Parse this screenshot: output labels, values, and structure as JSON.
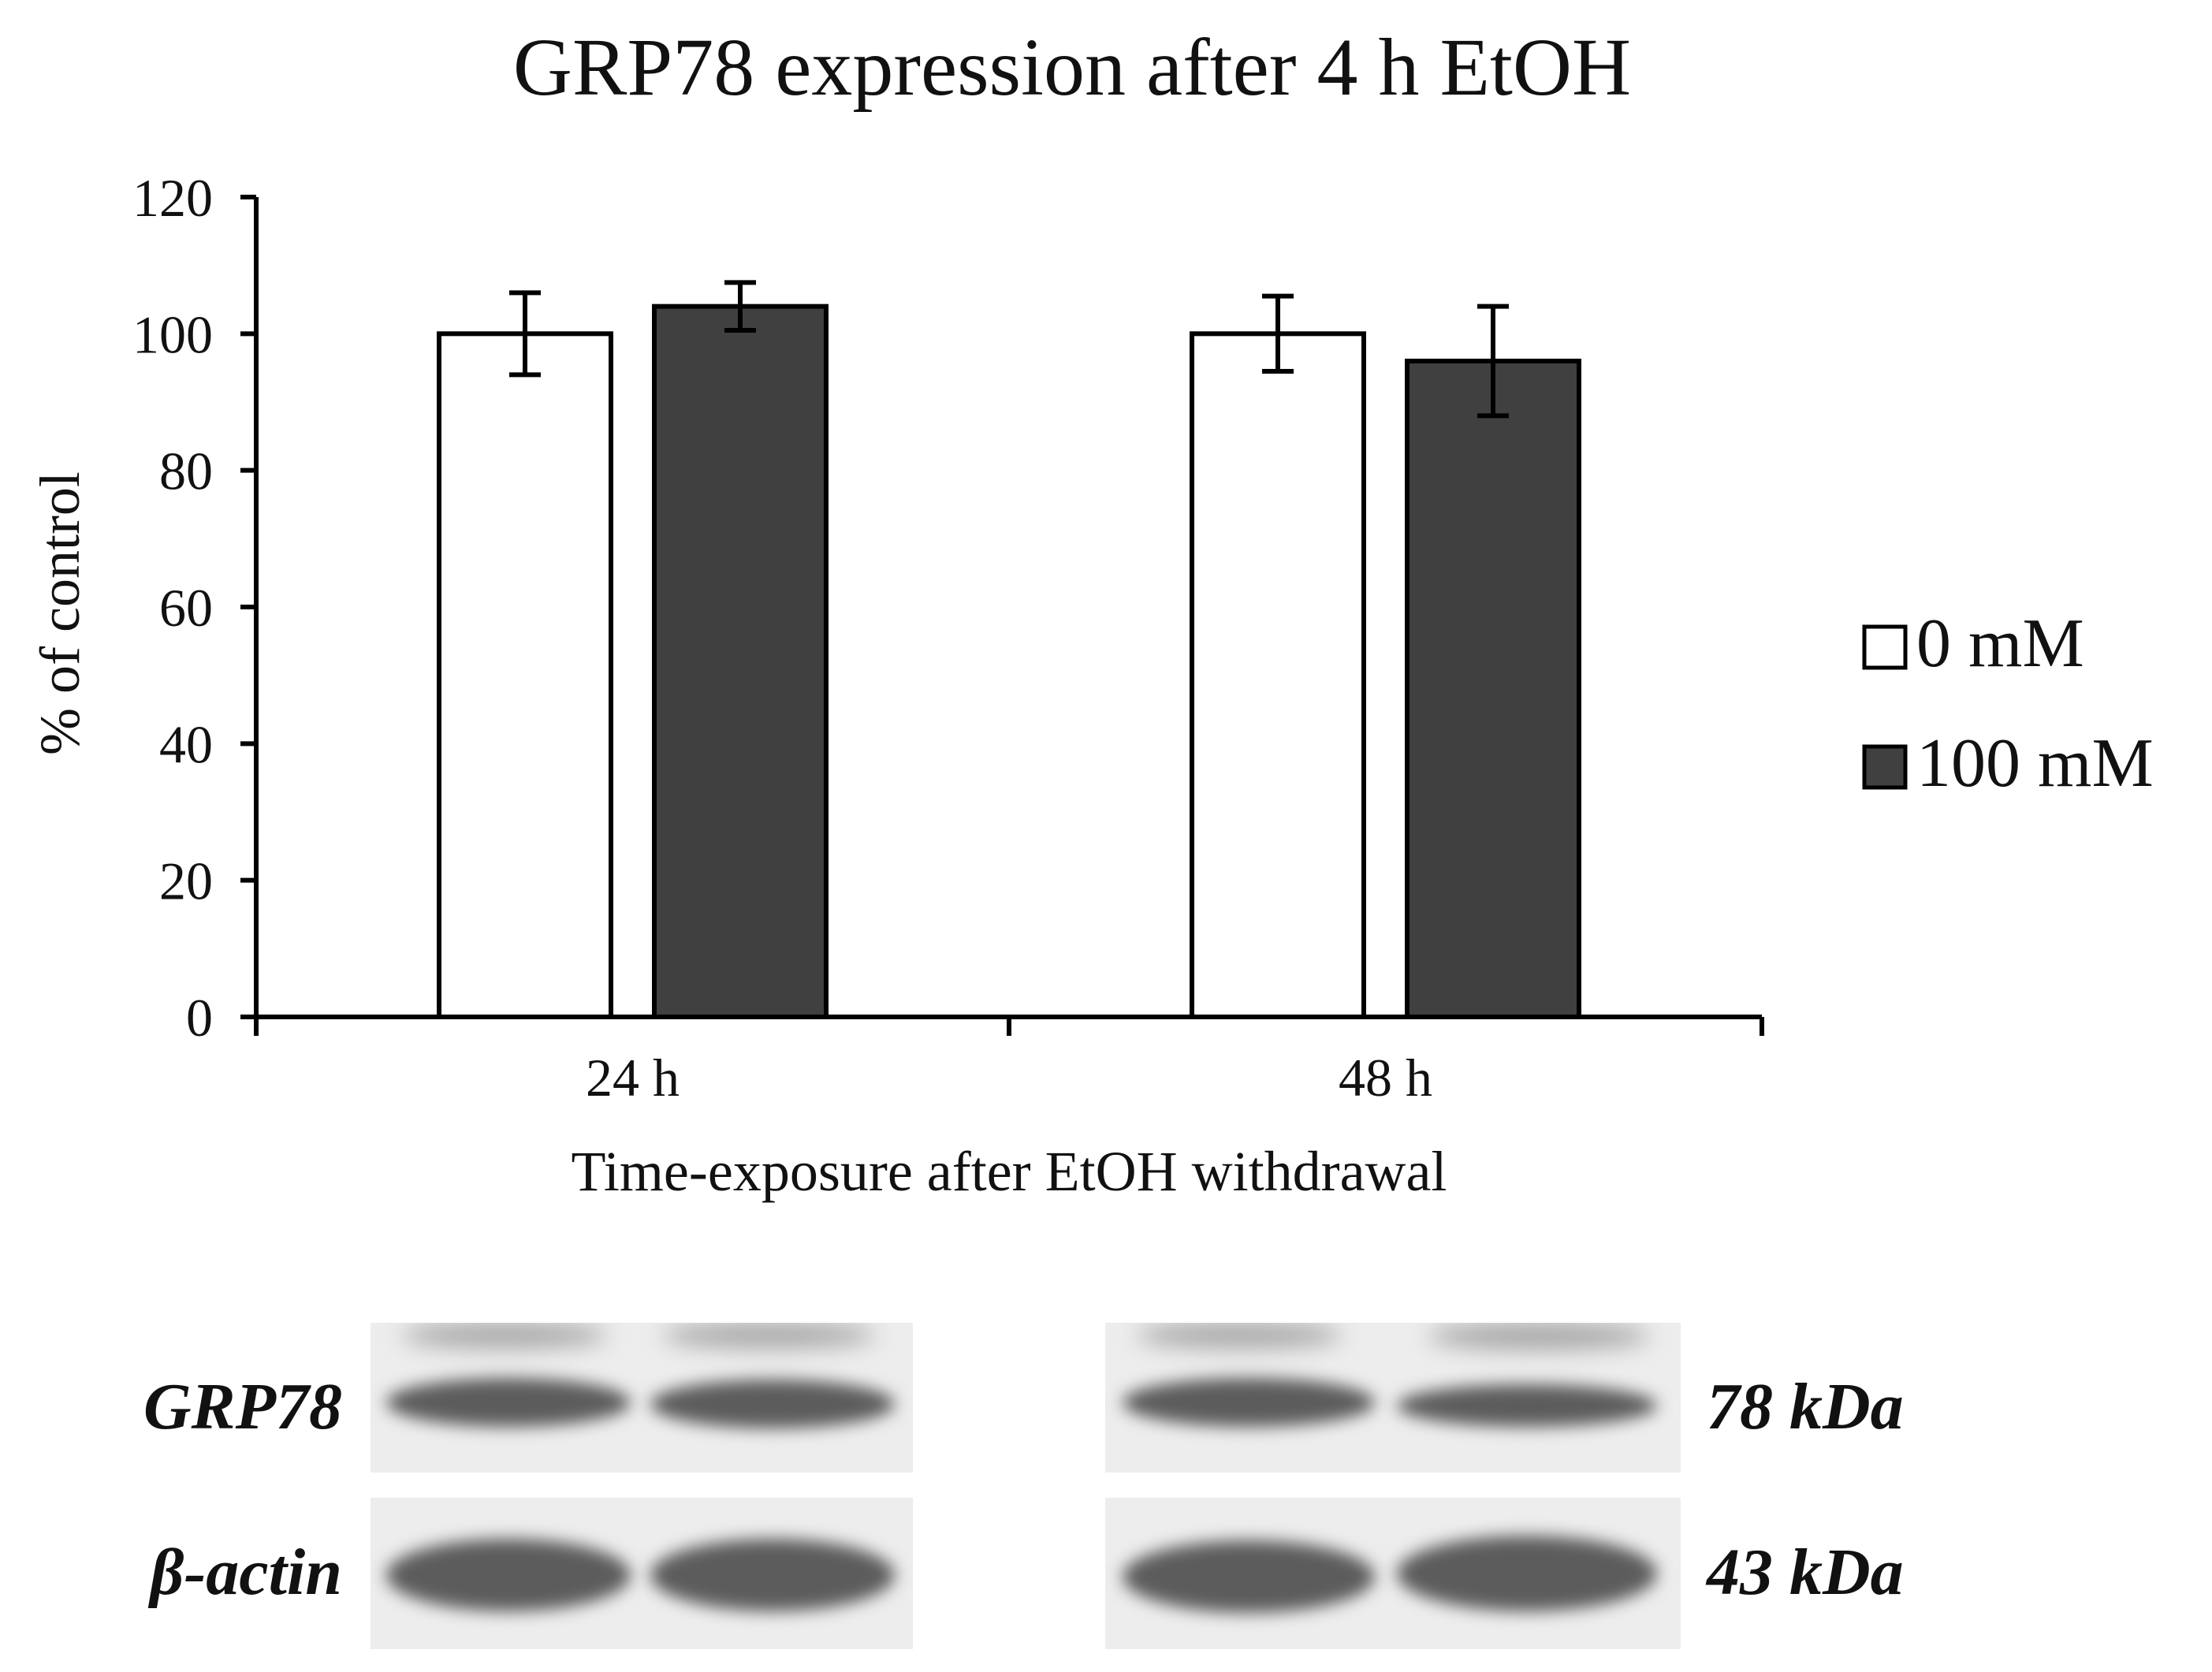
{
  "chart_data": {
    "type": "bar",
    "title": "GRP78 expression after 4 h EtOH",
    "xlabel": "Time-exposure after EtOH withdrawal",
    "ylabel": "% of control",
    "categories": [
      "24 h",
      "48 h"
    ],
    "series": [
      {
        "name": "0 mM",
        "values": [
          100,
          100
        ],
        "errors": [
          6,
          5.5
        ],
        "color": "#ffffff"
      },
      {
        "name": "100 mM",
        "values": [
          104,
          96
        ],
        "errors": [
          3.5,
          8
        ],
        "color": "#404040"
      }
    ],
    "ylim": [
      0,
      120
    ],
    "yticks": [
      0,
      20,
      40,
      60,
      80,
      100,
      120
    ],
    "grid": false,
    "legend_position": "right"
  },
  "blots": {
    "rows": [
      {
        "protein": "GRP78",
        "size": "78 kDa"
      },
      {
        "protein": "β-actin",
        "size": "43 kDa"
      }
    ]
  }
}
